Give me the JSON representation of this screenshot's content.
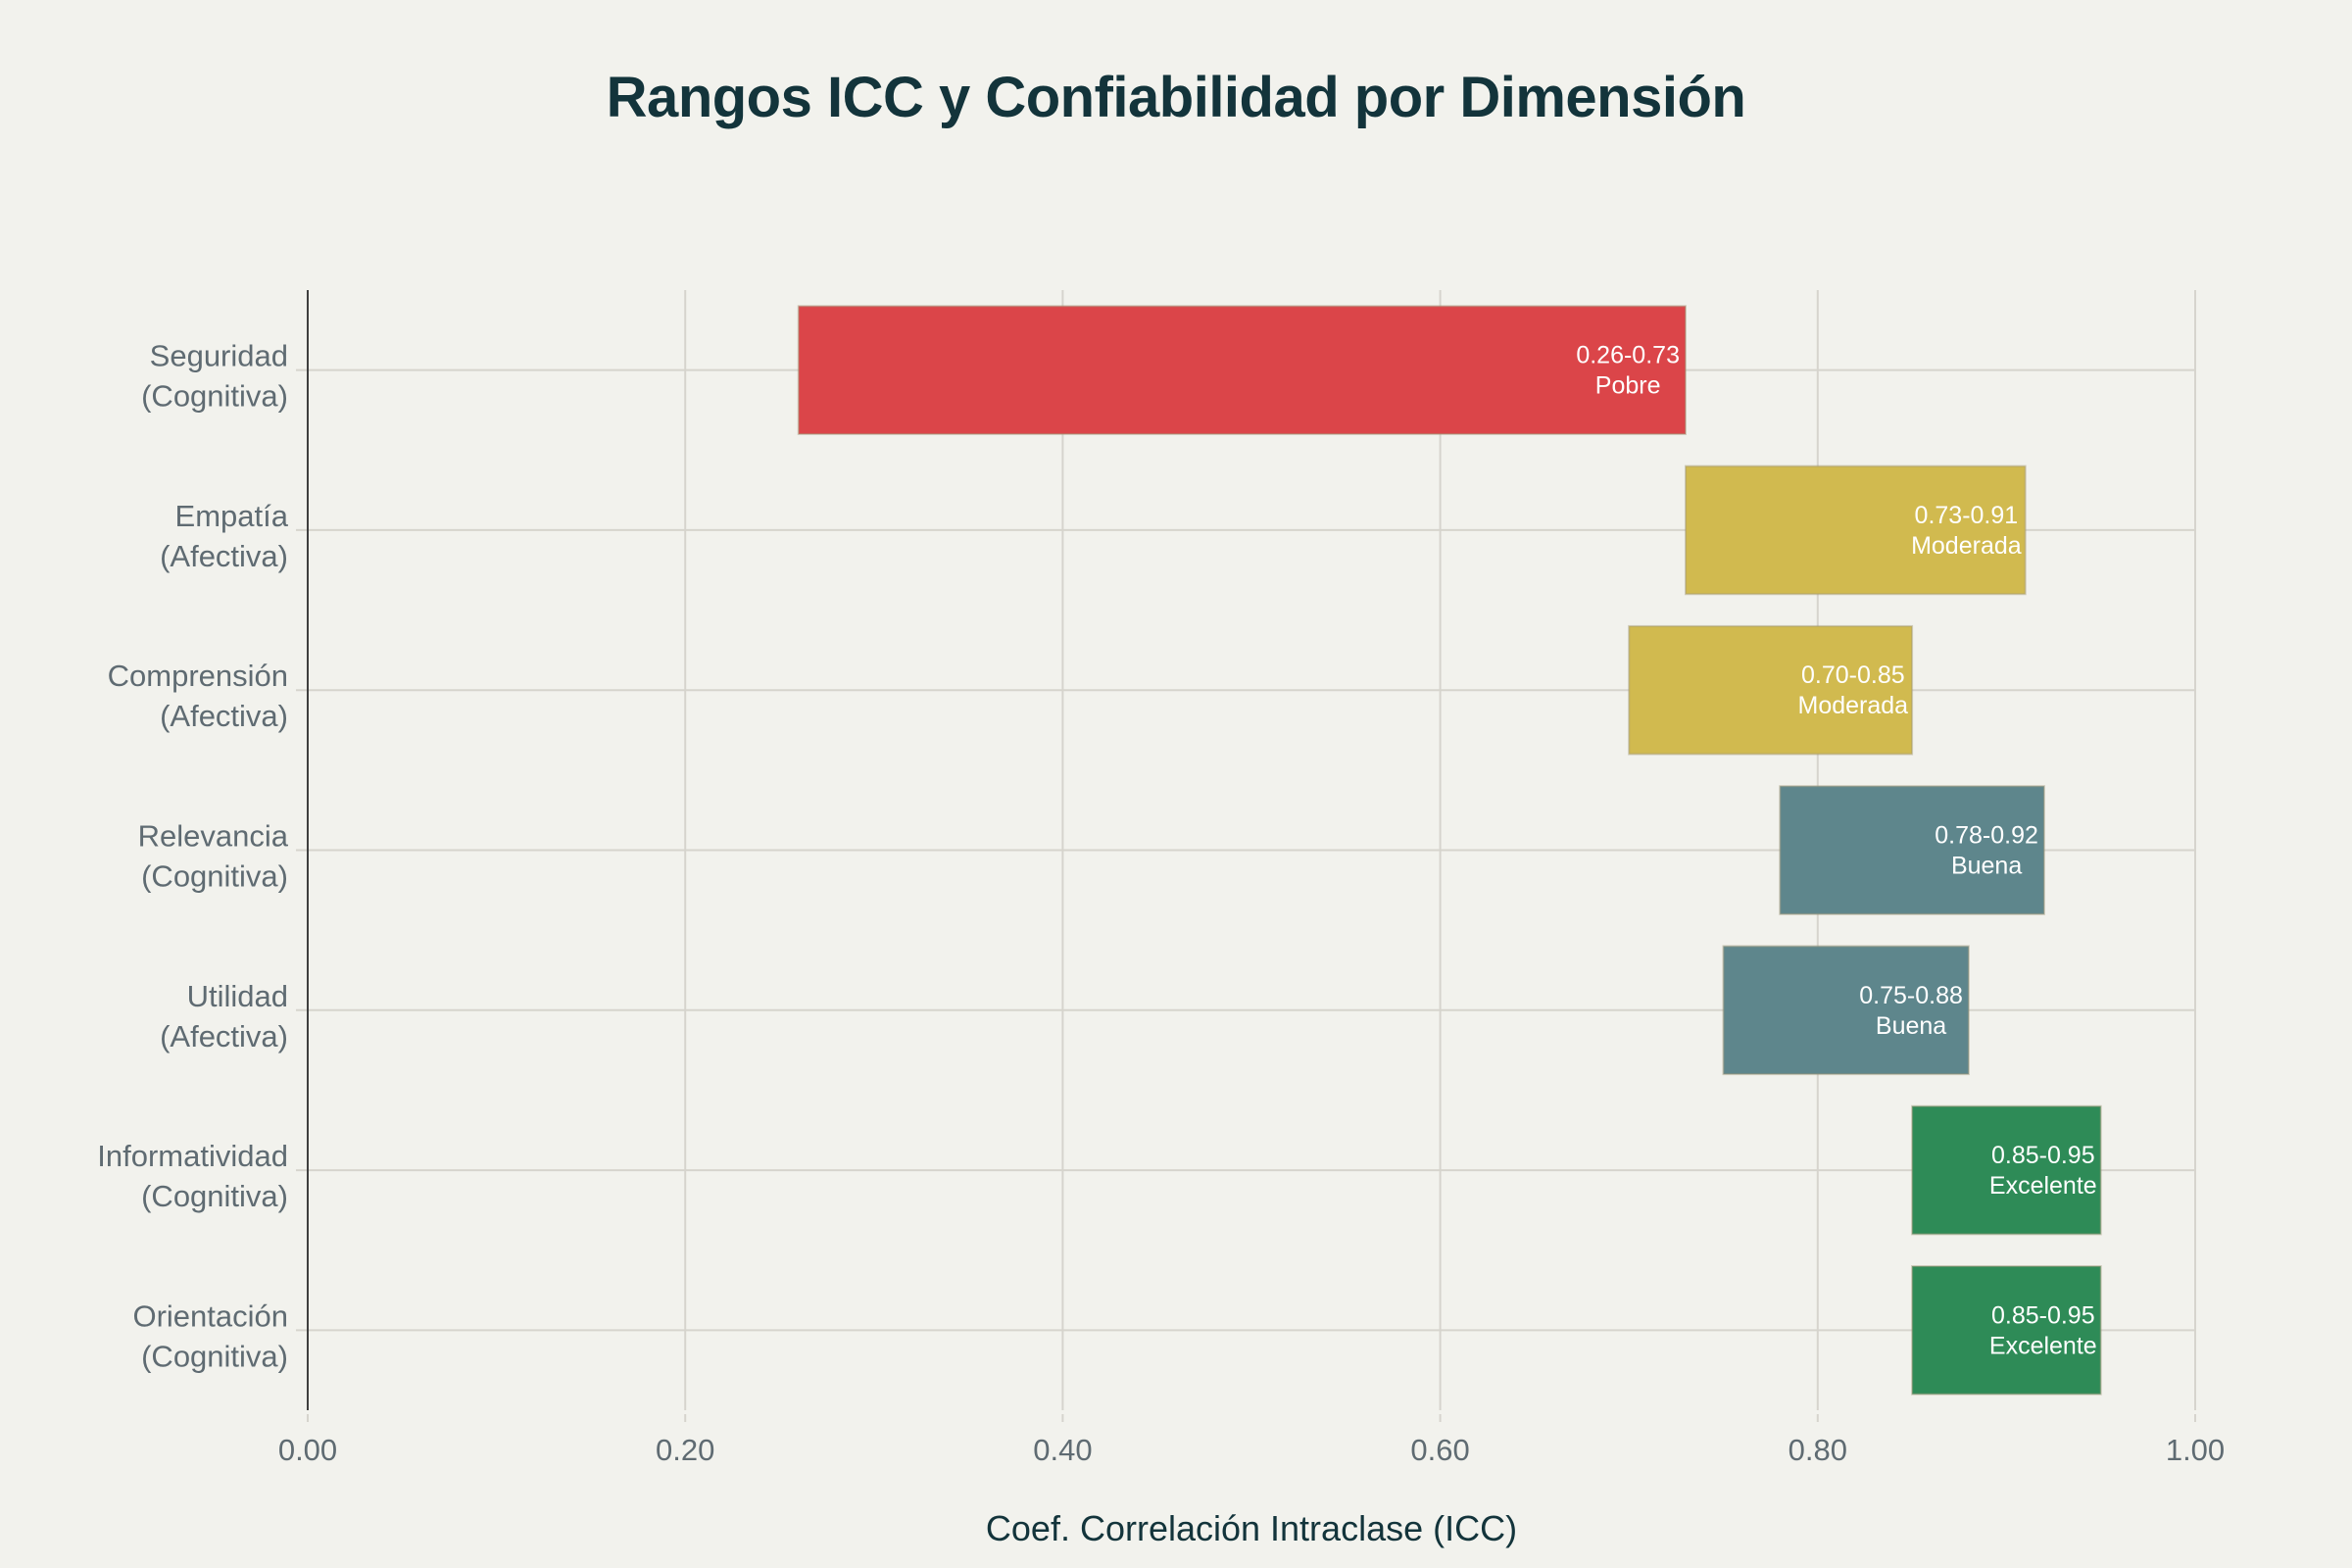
{
  "chart_data": {
    "type": "bar",
    "orientation": "horizontal",
    "subtype": "floating-range",
    "title": "Rangos ICC y Confiabilidad por Dimensión",
    "xlabel": "Coef. Correlación Intraclase (ICC)",
    "ylabel": "",
    "xlim": [
      0,
      1
    ],
    "xticks": [
      0,
      0.2,
      0.4,
      0.6,
      0.8,
      1.0
    ],
    "xtick_labels": [
      "0.00",
      "0.20",
      "0.40",
      "0.60",
      "0.80",
      "1.00"
    ],
    "grid": true,
    "legend": "none",
    "categories": [
      {
        "line1": "Seguridad",
        "line2": "(Cognitiva)"
      },
      {
        "line1": "Empatía",
        "line2": "(Afectiva)"
      },
      {
        "line1": "Comprensión",
        "line2": "(Afectiva)"
      },
      {
        "line1": "Relevancia",
        "line2": "(Cognitiva)"
      },
      {
        "line1": "Utilidad",
        "line2": "(Afectiva)"
      },
      {
        "line1": "Informatividad",
        "line2": "(Cognitiva)"
      },
      {
        "line1": "Orientación",
        "line2": "(Cognitiva)"
      }
    ],
    "series": [
      {
        "name": "Seguridad (Cognitiva)",
        "low": 0.26,
        "high": 0.73,
        "range_label": "0.26-0.73",
        "rating": "Pobre",
        "color": "#db4549"
      },
      {
        "name": "Empatía (Afectiva)",
        "low": 0.73,
        "high": 0.91,
        "range_label": "0.73-0.91",
        "rating": "Moderada",
        "color": "#d1ba4f"
      },
      {
        "name": "Comprensión (Afectiva)",
        "low": 0.7,
        "high": 0.85,
        "range_label": "0.70-0.85",
        "rating": "Moderada",
        "color": "#d1ba4f"
      },
      {
        "name": "Relevancia (Cognitiva)",
        "low": 0.78,
        "high": 0.92,
        "range_label": "0.78-0.92",
        "rating": "Buena",
        "color": "#5e868c"
      },
      {
        "name": "Utilidad (Afectiva)",
        "low": 0.75,
        "high": 0.88,
        "range_label": "0.75-0.88",
        "rating": "Buena",
        "color": "#5e868c"
      },
      {
        "name": "Informatividad (Cognitiva)",
        "low": 0.85,
        "high": 0.95,
        "range_label": "0.85-0.95",
        "rating": "Excelente",
        "color": "#2e8b57"
      },
      {
        "name": "Orientación (Cognitiva)",
        "low": 0.85,
        "high": 0.95,
        "range_label": "0.85-0.95",
        "rating": "Excelente",
        "color": "#2e8b57"
      }
    ],
    "colors": {
      "background": "#f2f2ed",
      "title": "#13343b",
      "axis_text": "#5f6b72",
      "grid": "#d6d4cd"
    }
  }
}
